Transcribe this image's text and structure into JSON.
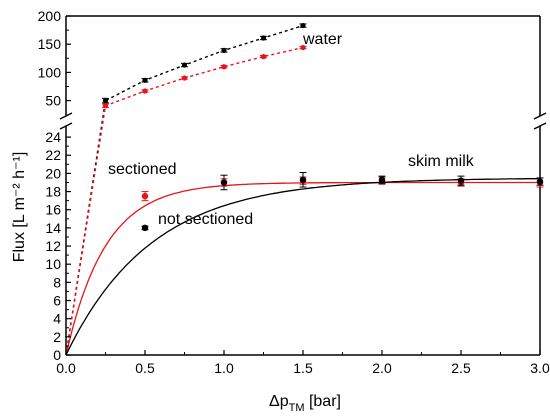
{
  "chart_data": {
    "type": "line",
    "title": "",
    "xlabel": {
      "main": "Δp",
      "sub": "TM",
      "tail": " [bar]"
    },
    "ylabel": "Flux [L m⁻² h⁻¹]",
    "xlim": [
      0.0,
      3.0
    ],
    "x_ticks": [
      "0.0",
      "0.5",
      "1.0",
      "1.5",
      "2.0",
      "2.5",
      "3.0"
    ],
    "ylim_lower": [
      0,
      25
    ],
    "y_ticks_lower": [
      "0",
      "2",
      "4",
      "6",
      "8",
      "10",
      "12",
      "14",
      "16",
      "18",
      "20",
      "22",
      "24"
    ],
    "ylim_upper": [
      28,
      200
    ],
    "y_ticks_upper": [
      "50",
      "100",
      "150",
      "200"
    ],
    "broken_y_axis": true,
    "grid": false,
    "annotations": {
      "water": "water",
      "sectioned": "sectioned",
      "not_sectioned": "not sectioned",
      "skim_milk": "skim milk"
    },
    "series": [
      {
        "key": "water_black",
        "color": "#000000",
        "style": "dotted-with-points",
        "x": [
          0.25,
          0.5,
          0.75,
          1.0,
          1.25,
          1.5
        ],
        "y": [
          50,
          86,
          113,
          139,
          161,
          183
        ],
        "err": [
          4,
          3,
          3,
          3,
          3,
          3
        ]
      },
      {
        "key": "water_red",
        "color": "#e8141b",
        "style": "dotted-with-points",
        "x": [
          0.25,
          0.5,
          0.75,
          1.0,
          1.25,
          1.5
        ],
        "y": [
          41,
          67,
          90,
          110,
          128,
          144
        ],
        "err": [
          3,
          2,
          2,
          2,
          2,
          2
        ]
      },
      {
        "key": "skim_milk_sectioned",
        "color": "#e8141b",
        "style": "points-with-fit",
        "x": [
          0.5,
          1.0,
          1.5,
          2.0,
          2.5,
          3.0
        ],
        "y": [
          17.5,
          19.0,
          19.2,
          19.2,
          19.0,
          19.0
        ],
        "err": [
          0.5,
          0.4,
          0.4,
          0.4,
          0.4,
          0.5
        ],
        "fit": {
          "ymax": 19.0,
          "k": 4.0
        }
      },
      {
        "key": "skim_milk_not_sectioned",
        "color": "#000000",
        "style": "points-with-fit",
        "x": [
          0.5,
          1.0,
          1.5,
          2.0,
          2.5,
          3.0
        ],
        "y": [
          14.0,
          19.0,
          19.3,
          19.3,
          19.2,
          19.1
        ],
        "err": [
          0.2,
          0.8,
          0.8,
          0.4,
          0.5,
          0.4
        ],
        "fit": {
          "ymax": 19.5,
          "k": 1.85
        }
      }
    ]
  }
}
